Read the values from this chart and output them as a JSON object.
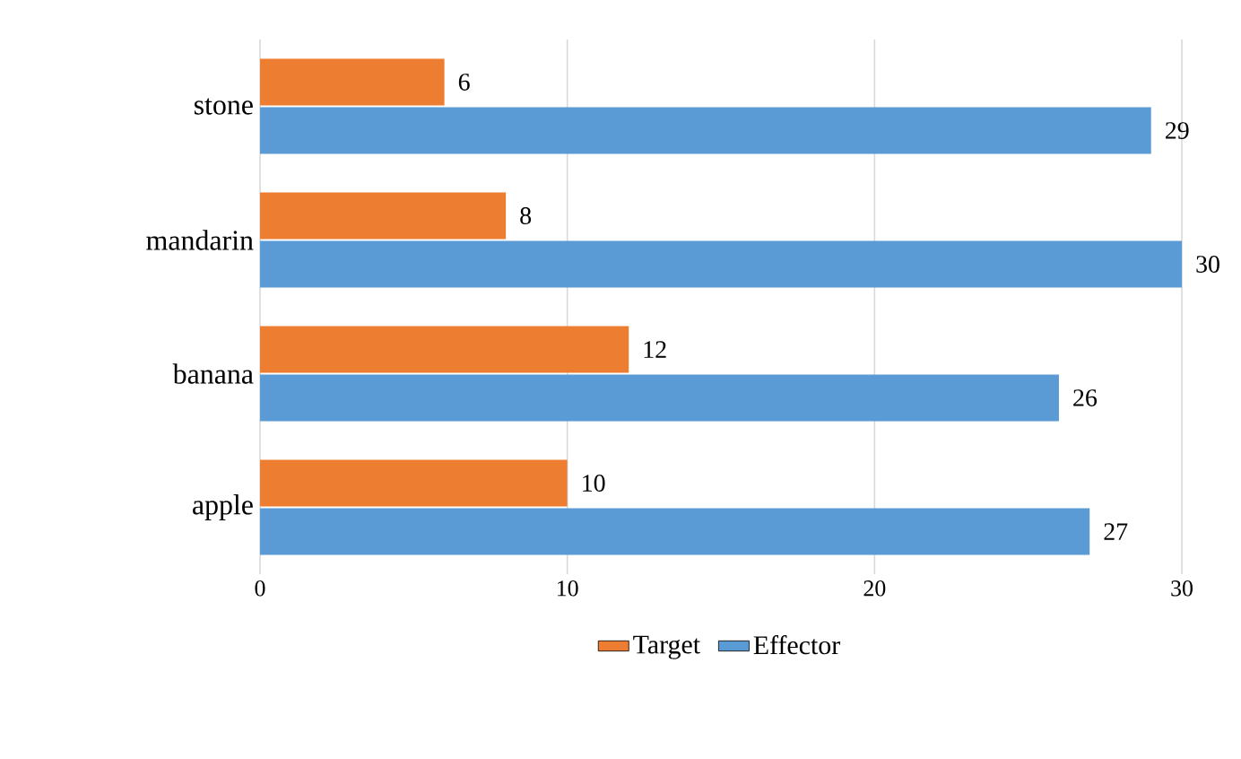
{
  "chart_data": {
    "type": "bar",
    "orientation": "horizontal",
    "categories": [
      "stone",
      "mandarin",
      "banana",
      "apple"
    ],
    "series": [
      {
        "name": "Target",
        "color": "#ed7d31",
        "values": [
          6,
          8,
          12,
          10
        ]
      },
      {
        "name": "Effector",
        "color": "#5b9bd5",
        "values": [
          29,
          30,
          26,
          27
        ]
      }
    ],
    "xlim": [
      0,
      30
    ],
    "xticks": [
      0,
      10,
      20,
      30
    ],
    "grid": "x",
    "legend": "bottom",
    "data_labels": true
  }
}
